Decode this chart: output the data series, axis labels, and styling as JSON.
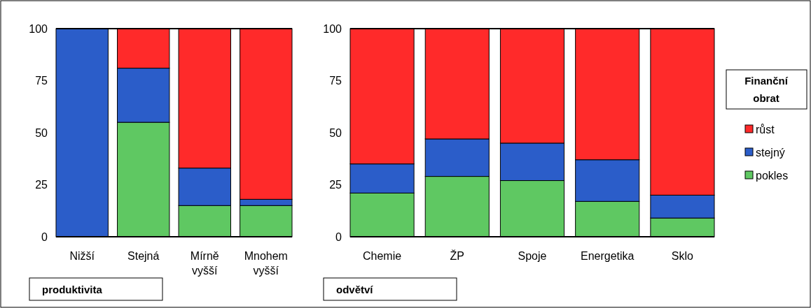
{
  "chart_data": [
    {
      "type": "bar",
      "stacked": true,
      "xlabel": "produktivita",
      "categories": [
        "Nižší",
        "Stejná",
        "Mírně vyšší",
        "Mnohem vyšší"
      ],
      "ylim": [
        0,
        100
      ],
      "yticks": [
        0,
        25,
        50,
        75,
        100
      ],
      "grid": false,
      "legend": false,
      "series": [
        {
          "color": "#5fc862",
          "values": [
            0,
            55,
            15,
            15
          ]
        },
        {
          "color": "#2b5dc9",
          "values": [
            100,
            26,
            18,
            3
          ]
        },
        {
          "color": "#ff2a2a",
          "values": [
            0,
            19,
            67,
            82
          ]
        }
      ]
    },
    {
      "type": "bar",
      "stacked": true,
      "xlabel": "odvětví",
      "categories": [
        "Chemie",
        "ŽP",
        "Spoje",
        "Energetika",
        "Sklo"
      ],
      "ylim": [
        0,
        100
      ],
      "yticks": [
        0,
        25,
        50,
        75,
        100
      ],
      "grid": false,
      "legend": "right",
      "legend_title": "Finanční obrat",
      "series": [
        {
          "name": "pokles",
          "color": "#5fc862",
          "values": [
            21,
            29,
            27,
            17,
            9
          ]
        },
        {
          "name": "stejný",
          "color": "#2b5dc9",
          "values": [
            14,
            18,
            18,
            20,
            11
          ]
        },
        {
          "name": "růst",
          "color": "#ff2a2a",
          "values": [
            65,
            53,
            55,
            63,
            80
          ]
        }
      ]
    }
  ]
}
